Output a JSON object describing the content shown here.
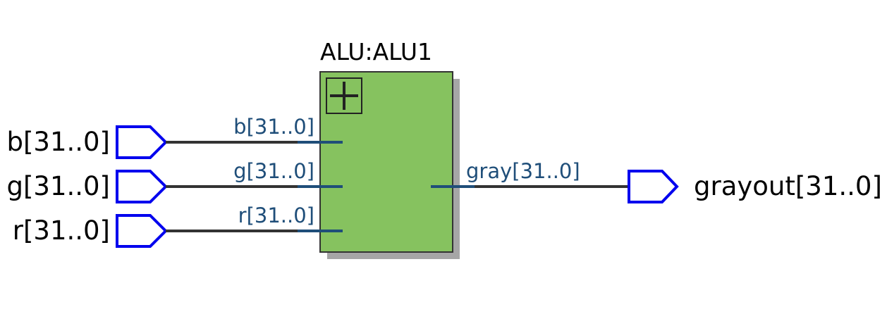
{
  "block": {
    "title": "ALU:ALU1",
    "fill_color": "#86c25f",
    "shadow_color": "#a6a6a6",
    "expand_icon": "plus-icon"
  },
  "inputs": [
    {
      "label": "b[31..0]",
      "pin": "b[31..0]"
    },
    {
      "label": "g[31..0]",
      "pin": "g[31..0]"
    },
    {
      "label": "r[31..0]",
      "pin": "r[31..0]"
    }
  ],
  "output": {
    "label": "grayout[31..0]",
    "pin": "gray[31..0]"
  },
  "colors": {
    "port_outline": "#0000ee",
    "wire": "#333333",
    "pin_stub": "#1f4e79",
    "pin_text": "#1f4e79"
  }
}
